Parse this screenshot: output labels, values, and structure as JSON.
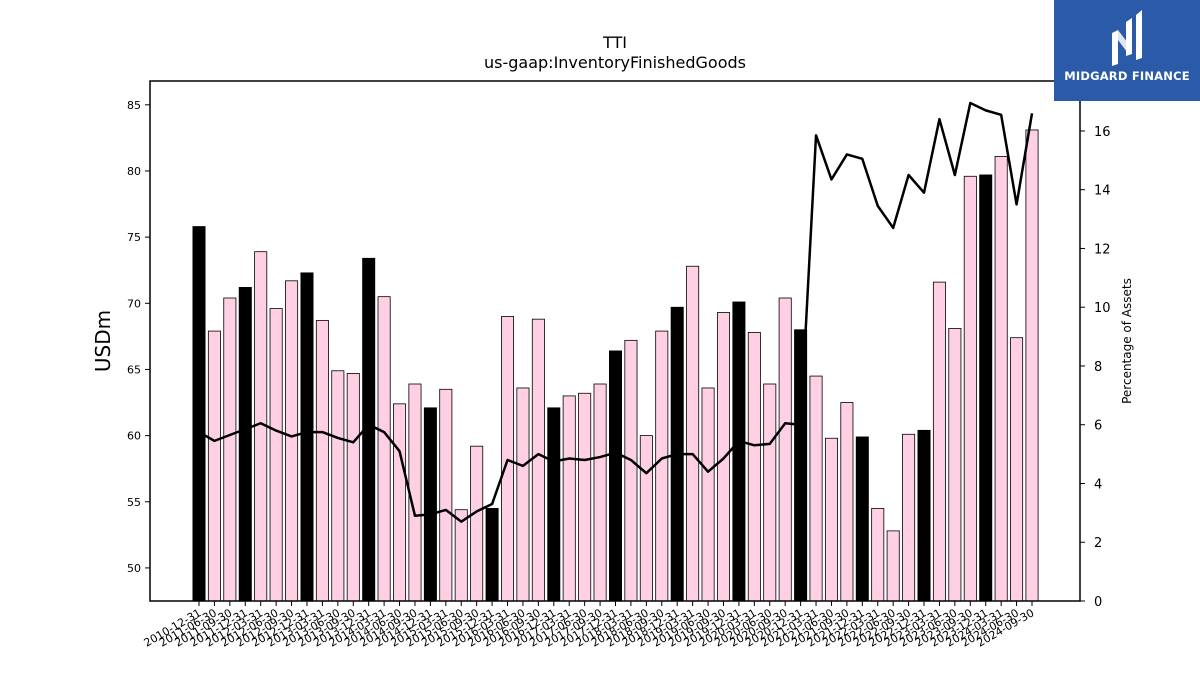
{
  "chart_data": {
    "type": "bar",
    "title": "TTI",
    "subtitle": "us-gaap:InventoryFinishedGoods",
    "ylabel": "USDm",
    "y2label": "Percentage of Assets",
    "ylim": [
      47.5,
      86.8
    ],
    "y2lim": [
      0,
      17.7
    ],
    "yticks": [
      50,
      55,
      60,
      65,
      70,
      75,
      80,
      85
    ],
    "y2ticks": [
      0,
      2,
      4,
      6,
      8,
      10,
      12,
      14,
      16
    ],
    "colors": {
      "annual_bar": "#000000",
      "quarter_bar": "#ffd0e4",
      "bar_edge": "#000000",
      "line": "#000000"
    },
    "categories": [
      "2010-12-31",
      "2011-06-30",
      "2011-09-30",
      "2011-12-31",
      "2012-03-31",
      "2012-06-30",
      "2012-09-30",
      "2012-12-31",
      "2013-03-31",
      "2013-06-30",
      "2013-09-30",
      "2013-12-31",
      "2014-03-31",
      "2014-06-30",
      "2014-09-30",
      "2014-12-31",
      "2015-03-31",
      "2015-06-30",
      "2015-09-30",
      "2015-12-31",
      "2016-03-31",
      "2016-06-30",
      "2016-09-30",
      "2016-12-31",
      "2017-03-31",
      "2017-06-30",
      "2017-09-30",
      "2017-12-31",
      "2018-03-31",
      "2018-06-30",
      "2018-09-30",
      "2018-12-31",
      "2019-03-31",
      "2019-06-30",
      "2019-09-30",
      "2019-12-31",
      "2020-03-31",
      "2020-06-30",
      "2020-09-30",
      "2020-12-31",
      "2021-03-31",
      "2021-06-30",
      "2021-09-30",
      "2021-12-31",
      "2022-03-31",
      "2022-06-30",
      "2022-09-30",
      "2022-12-31",
      "2023-03-31",
      "2023-06-30",
      "2023-09-30",
      "2023-12-31",
      "2024-03-31",
      "2024-06-30",
      "2024-09-30"
    ],
    "series": [
      {
        "values": [
          75.8,
          67.9,
          70.4,
          71.2,
          73.9,
          69.6,
          71.7,
          72.3,
          68.7,
          64.9,
          64.7,
          73.4,
          70.5,
          62.4,
          63.9,
          62.1,
          63.5,
          54.4,
          59.2,
          54.5,
          69.0,
          63.6,
          68.8,
          62.1,
          63.0,
          63.2,
          63.9,
          66.4,
          67.2,
          60.0,
          67.9,
          69.7,
          72.8,
          63.6,
          69.3,
          70.1,
          67.8,
          63.9,
          70.4,
          68.0,
          64.5,
          59.8,
          62.5,
          59.9,
          54.5,
          52.8,
          60.1,
          60.4,
          71.6,
          68.1,
          79.6,
          79.7,
          81.1,
          67.4,
          83.1
        ],
        "annual": [
          true,
          false,
          false,
          true,
          false,
          false,
          false,
          true,
          false,
          false,
          false,
          true,
          false,
          false,
          false,
          true,
          false,
          false,
          false,
          true,
          false,
          false,
          false,
          true,
          false,
          false,
          false,
          true,
          false,
          false,
          false,
          true,
          false,
          false,
          false,
          true,
          false,
          false,
          false,
          true,
          false,
          false,
          false,
          true,
          false,
          false,
          false,
          true,
          false,
          false,
          false,
          true,
          false,
          false,
          false
        ]
      },
      {
        "axis": "right",
        "values": [
          5.75,
          5.45,
          5.65,
          5.85,
          6.05,
          5.8,
          5.6,
          5.75,
          5.75,
          5.55,
          5.4,
          6.0,
          5.75,
          5.1,
          2.9,
          2.95,
          3.1,
          2.7,
          3.05,
          3.3,
          4.8,
          4.6,
          5.0,
          4.75,
          4.85,
          4.8,
          4.9,
          5.05,
          4.8,
          4.35,
          4.85,
          5.0,
          5.0,
          4.4,
          4.85,
          5.45,
          5.3,
          5.35,
          6.05,
          6.0,
          15.85,
          14.35,
          15.2,
          15.05,
          13.45,
          12.7,
          14.5,
          13.9,
          16.4,
          14.5,
          16.95,
          16.7,
          16.55,
          13.5,
          16.6
        ]
      }
    ]
  },
  "logo": {
    "text": "MIDGARD FINANCE"
  }
}
